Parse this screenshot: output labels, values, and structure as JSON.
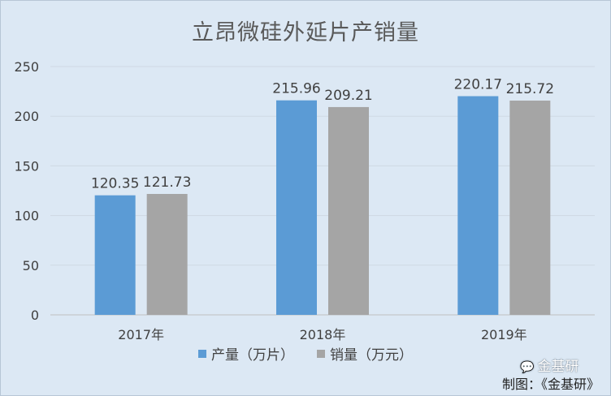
{
  "chart_data": {
    "type": "bar",
    "title": "立昂微硅外延片产销量",
    "categories": [
      "2017年",
      "2018年",
      "2019年"
    ],
    "series": [
      {
        "name": "产量（万片）",
        "values": [
          120.35,
          215.96,
          220.17
        ],
        "color": "#5b9bd5"
      },
      {
        "name": "销量（万元）",
        "values": [
          121.73,
          209.21,
          215.72
        ],
        "color": "#a5a5a5"
      }
    ],
    "ylim": [
      0,
      250
    ],
    "yticks": [
      0,
      50,
      100,
      150,
      200,
      250
    ],
    "grid": true,
    "legend_position": "bottom"
  },
  "watermark": {
    "icon": "wechat-icon",
    "text": "金基研"
  },
  "credit": "制图：《金基研》"
}
